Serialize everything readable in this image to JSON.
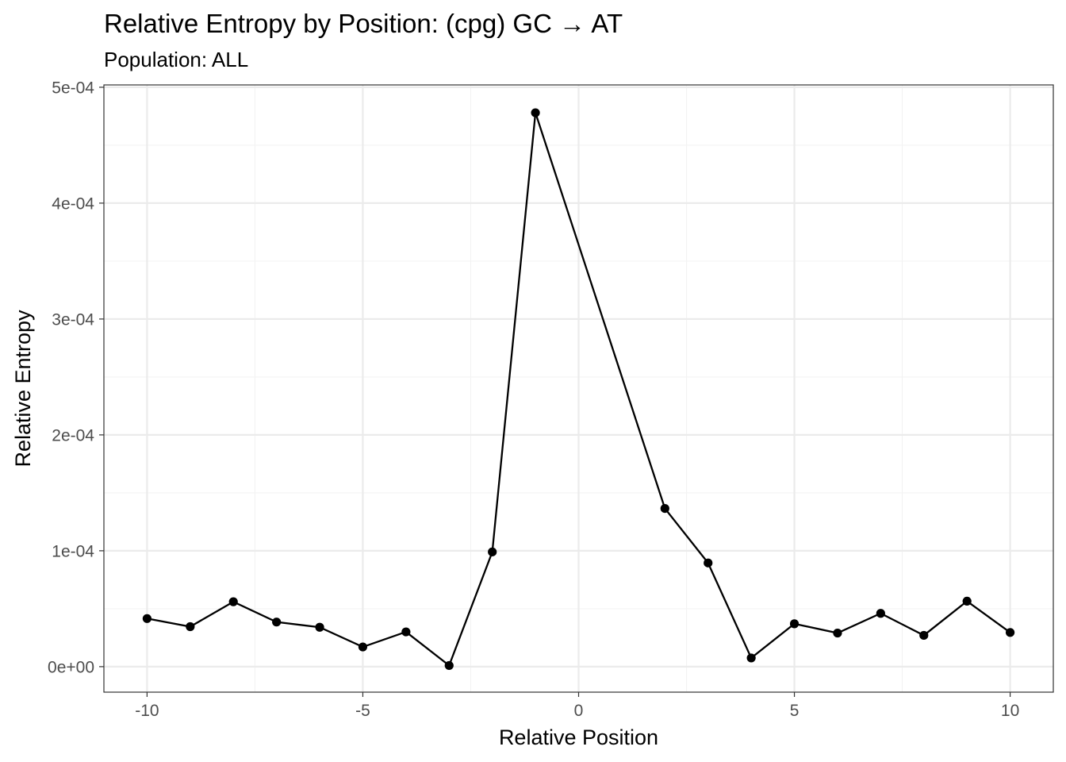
{
  "chart_data": {
    "type": "line",
    "title": "Relative Entropy by Position: (cpg) GC → AT",
    "subtitle": "Population: ALL",
    "xlabel": "Relative Position",
    "ylabel": "Relative Entropy",
    "xlim": [
      -11,
      11
    ],
    "ylim": [
      -2.2e-05,
      0.000502
    ],
    "x_ticks": [
      -10,
      -5,
      0,
      5,
      10
    ],
    "x_tick_labels": [
      "-10",
      "-5",
      "0",
      "5",
      "10"
    ],
    "y_ticks": [
      0,
      0.0001,
      0.0002,
      0.0003,
      0.0004,
      0.0005
    ],
    "y_tick_labels": [
      "0e+00",
      "1e-04",
      "2e-04",
      "3e-04",
      "4e-04",
      "5e-04"
    ],
    "grid": true,
    "legend": "none",
    "series": [
      {
        "color": "#000000",
        "x": [
          -10,
          -9,
          -8,
          -7,
          -6,
          -5,
          -4,
          -3,
          -2,
          -1,
          2,
          3,
          4,
          5,
          6,
          7,
          8,
          9,
          10
        ],
        "y": [
          4.15e-05,
          3.45e-05,
          5.6e-05,
          3.85e-05,
          3.4e-05,
          1.7e-05,
          3e-05,
          1e-06,
          9.9e-05,
          0.000478,
          0.0001365,
          8.95e-05,
          7.5e-06,
          3.7e-05,
          2.9e-05,
          4.6e-05,
          2.7e-05,
          5.65e-05,
          2.95e-05
        ]
      }
    ]
  }
}
